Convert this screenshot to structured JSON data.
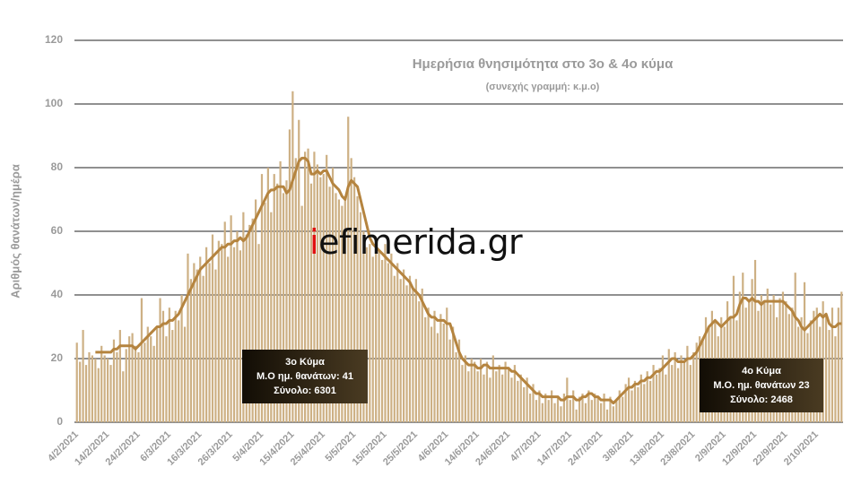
{
  "chart_data": {
    "type": "bar",
    "title": "Ημερήσια θνησιμότητα στο 3ο & 4ο κύμα",
    "subtitle": "(συνεχής γραμμή: κ.μ.ο)",
    "y_label": "Αριθμός θανάτων/ημέρα",
    "watermark": "iefimerida.gr",
    "annotations": [
      {
        "lines": [
          "3ο Κύμα",
          "Μ.Ο ημ. θανάτων: 41",
          "Σύνολο: 6301"
        ]
      },
      {
        "lines": [
          "4ο Κύμα",
          "Μ.Ο. ημ. θανάτων 23",
          "Σύνολο: 2468"
        ]
      }
    ],
    "categories": [
      "4/2/2021",
      null,
      null,
      null,
      null,
      null,
      null,
      null,
      null,
      null,
      "14/2/2021",
      null,
      null,
      null,
      null,
      null,
      null,
      null,
      null,
      null,
      "24/2/2021",
      null,
      null,
      null,
      null,
      null,
      null,
      null,
      null,
      null,
      "6/3/2021",
      null,
      null,
      null,
      null,
      null,
      null,
      null,
      null,
      null,
      "16/3/2021",
      null,
      null,
      null,
      null,
      null,
      null,
      null,
      null,
      null,
      "26/3/2021",
      null,
      null,
      null,
      null,
      null,
      null,
      null,
      null,
      null,
      "5/4/2021",
      null,
      null,
      null,
      null,
      null,
      null,
      null,
      null,
      null,
      "15/4/2021",
      null,
      null,
      null,
      null,
      null,
      null,
      null,
      null,
      null,
      "25/4/2021",
      null,
      null,
      null,
      null,
      null,
      null,
      null,
      null,
      null,
      "5/5/2021",
      null,
      null,
      null,
      null,
      null,
      null,
      null,
      null,
      null,
      "15/5/2021",
      null,
      null,
      null,
      null,
      null,
      null,
      null,
      null,
      null,
      "25/5/2021",
      null,
      null,
      null,
      null,
      null,
      null,
      null,
      null,
      null,
      "4/6/2021",
      null,
      null,
      null,
      null,
      null,
      null,
      null,
      null,
      null,
      "14/6/2021",
      null,
      null,
      null,
      null,
      null,
      null,
      null,
      null,
      null,
      "24/6/2021",
      null,
      null,
      null,
      null,
      null,
      null,
      null,
      null,
      null,
      "4/7/2021",
      null,
      null,
      null,
      null,
      null,
      null,
      null,
      null,
      null,
      "14/7/2021",
      null,
      null,
      null,
      null,
      null,
      null,
      null,
      null,
      null,
      "24/7/2021",
      null,
      null,
      null,
      null,
      null,
      null,
      null,
      null,
      null,
      "3/8/2021",
      null,
      null,
      null,
      null,
      null,
      null,
      null,
      null,
      null,
      "13/8/2021",
      null,
      null,
      null,
      null,
      null,
      null,
      null,
      null,
      null,
      "23/8/2021",
      null,
      null,
      null,
      null,
      null,
      null,
      null,
      null,
      null,
      "2/9/2021",
      null,
      null,
      null,
      null,
      null,
      null,
      null,
      null,
      null,
      "12/9/2021",
      null,
      null,
      null,
      null,
      null,
      null,
      null,
      null,
      null,
      "22/9/2021",
      null,
      null,
      null,
      null,
      null,
      null,
      null,
      null,
      null,
      "2/10/2021",
      null,
      null,
      null,
      null,
      null,
      null,
      null,
      null
    ],
    "values": [
      25,
      19,
      29,
      18,
      22,
      21,
      20,
      17,
      24,
      21,
      20,
      18,
      26,
      22,
      29,
      16,
      23,
      27,
      28,
      24,
      22,
      39,
      25,
      30,
      27,
      24,
      30,
      39,
      35,
      27,
      36,
      29,
      35,
      32,
      40,
      30,
      53,
      45,
      50,
      48,
      52,
      46,
      55,
      50,
      59,
      48,
      57,
      56,
      63,
      52,
      65,
      55,
      60,
      54,
      66,
      59,
      62,
      64,
      70,
      56,
      78,
      69,
      80,
      66,
      78,
      75,
      82,
      72,
      76,
      92,
      104,
      83,
      95,
      68,
      85,
      86,
      75,
      85,
      81,
      77,
      78,
      84,
      74,
      80,
      72,
      70,
      68,
      71,
      96,
      83,
      77,
      71,
      66,
      60,
      55,
      56,
      52,
      58,
      54,
      51,
      56,
      50,
      53,
      46,
      50,
      45,
      48,
      43,
      46,
      42,
      45,
      38,
      42,
      33,
      36,
      30,
      35,
      28,
      34,
      31,
      36,
      26,
      30,
      22,
      26,
      18,
      21,
      16,
      20,
      19,
      16,
      20,
      15,
      19,
      14,
      21,
      16,
      18,
      15,
      19,
      17,
      14,
      18,
      13,
      15,
      11,
      14,
      9,
      12,
      7,
      10,
      6,
      9,
      7,
      10,
      6,
      8,
      5,
      9,
      14,
      7,
      10,
      4,
      8,
      9,
      6,
      10,
      7,
      9,
      8,
      6,
      9,
      4,
      8,
      5,
      7,
      10,
      8,
      12,
      14,
      10,
      13,
      11,
      15,
      12,
      16,
      13,
      18,
      15,
      17,
      21,
      15,
      23,
      18,
      22,
      17,
      21,
      19,
      24,
      18,
      22,
      25,
      27,
      26,
      33,
      30,
      35,
      32,
      27,
      33,
      30,
      38,
      33,
      46,
      32,
      41,
      47,
      36,
      38,
      45,
      51,
      35,
      40,
      38,
      42,
      37,
      40,
      33,
      39,
      41,
      38,
      34,
      36,
      47,
      30,
      33,
      44,
      28,
      32,
      35,
      36,
      30,
      38,
      34,
      29,
      36,
      27,
      36,
      41
    ],
    "color": "#cdb084",
    "line_values": [
      null,
      null,
      null,
      null,
      null,
      null,
      22,
      22,
      22,
      22,
      22,
      22,
      23,
      23,
      24,
      24,
      24,
      24,
      24,
      23,
      24,
      25,
      26,
      27,
      28,
      29,
      30,
      30,
      31,
      31,
      32,
      32,
      33,
      34,
      36,
      38,
      40,
      42,
      44,
      46,
      48,
      49,
      50,
      51,
      52,
      53,
      54,
      55,
      55,
      56,
      56,
      57,
      57,
      58,
      57,
      58,
      60,
      62,
      64,
      66,
      68,
      70,
      72,
      73,
      73,
      74,
      74,
      74,
      72,
      73,
      76,
      79,
      82,
      83,
      83,
      82,
      78,
      78,
      79,
      78,
      79,
      79,
      77,
      75,
      74,
      73,
      71,
      70,
      74,
      76,
      75,
      74,
      70,
      66,
      62,
      58,
      56,
      55,
      54,
      53,
      52,
      51,
      50,
      49,
      48,
      47,
      46,
      45,
      44,
      42,
      41,
      40,
      38,
      36,
      34,
      33,
      33,
      32,
      32,
      32,
      31,
      31,
      28,
      25,
      22,
      20,
      19,
      18,
      18,
      18,
      17,
      17,
      18,
      18,
      17,
      17,
      17,
      17,
      17,
      17,
      17,
      16,
      16,
      15,
      14,
      13,
      12,
      11,
      10,
      9,
      9,
      8,
      8,
      8,
      8,
      8,
      8,
      7,
      7,
      8,
      8,
      8,
      7,
      7,
      8,
      8,
      9,
      9,
      8,
      8,
      7,
      7,
      7,
      7,
      6,
      7,
      8,
      9,
      10,
      11,
      11,
      12,
      12,
      13,
      13,
      14,
      14,
      15,
      16,
      16,
      17,
      18,
      19,
      20,
      20,
      19,
      19,
      19,
      20,
      20,
      21,
      22,
      24,
      26,
      28,
      30,
      31,
      32,
      31,
      30,
      31,
      32,
      33,
      33,
      34,
      37,
      39,
      39,
      38,
      39,
      38,
      38,
      37,
      38,
      38,
      38,
      38,
      38,
      38,
      38,
      37,
      36,
      35,
      33,
      32,
      30,
      29,
      30,
      31,
      32,
      33,
      34,
      33,
      34,
      31,
      30,
      30,
      31,
      31
    ],
    "line_color": "#b5843f",
    "ylim": [
      0,
      120
    ],
    "yticks": [
      0,
      20,
      40,
      60,
      80,
      100,
      120
    ],
    "grid": true
  }
}
